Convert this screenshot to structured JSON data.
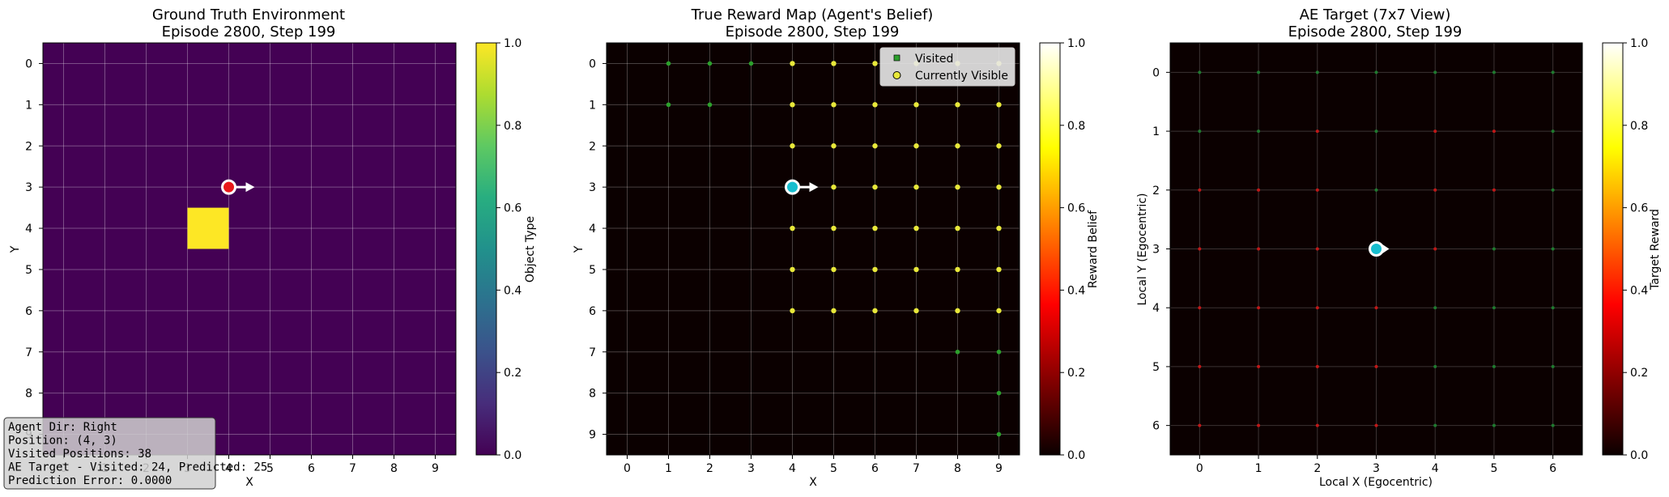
{
  "chart_data": [
    {
      "type": "heatmap",
      "title_line1": "Ground Truth Environment",
      "title_line2": "Episode 2800, Step 199",
      "xlabel": "X",
      "ylabel": "Y",
      "xticks": [
        0,
        1,
        2,
        3,
        4,
        5,
        6,
        7,
        8,
        9
      ],
      "yticks": [
        0,
        1,
        2,
        3,
        4,
        5,
        6,
        7,
        8,
        9
      ],
      "grid_size": 10,
      "background_value": 0.0,
      "objects": [
        {
          "x": 3.5,
          "y": 4,
          "value": 1.0
        }
      ],
      "agent": {
        "x": 4,
        "y": 3,
        "dir": "right"
      },
      "colorbar": {
        "label": "Object Type",
        "colormap": "viridis",
        "ticks": [
          "0.0",
          "0.2",
          "0.4",
          "0.6",
          "0.8",
          "1.0"
        ]
      },
      "info_box": [
        "Agent Dir: Right",
        "Position: (4, 3)",
        "Visited Positions: 38",
        "AE Target - Visited: 24, Predicted: 25",
        "Prediction Error: 0.0000"
      ]
    },
    {
      "type": "scatter",
      "title_line1": "True Reward Map (Agent's Belief)",
      "title_line2": "Episode 2800, Step 199",
      "xlabel": "X",
      "ylabel": "Y",
      "xticks": [
        0,
        1,
        2,
        3,
        4,
        5,
        6,
        7,
        8,
        9
      ],
      "yticks": [
        0,
        1,
        2,
        3,
        4,
        5,
        6,
        7,
        8,
        9
      ],
      "grid_size": 10,
      "visited": [
        [
          1,
          0
        ],
        [
          2,
          0
        ],
        [
          3,
          0
        ],
        [
          1,
          1
        ],
        [
          2,
          1
        ],
        [
          8,
          7
        ],
        [
          9,
          7
        ],
        [
          9,
          8
        ],
        [
          9,
          9
        ]
      ],
      "visible": [
        [
          4,
          0
        ],
        [
          5,
          0
        ],
        [
          6,
          0
        ],
        [
          7,
          0
        ],
        [
          8,
          0
        ],
        [
          9,
          0
        ],
        [
          4,
          1
        ],
        [
          5,
          1
        ],
        [
          6,
          1
        ],
        [
          7,
          1
        ],
        [
          8,
          1
        ],
        [
          9,
          1
        ],
        [
          4,
          2
        ],
        [
          5,
          2
        ],
        [
          6,
          2
        ],
        [
          7,
          2
        ],
        [
          8,
          2
        ],
        [
          9,
          2
        ],
        [
          5,
          3
        ],
        [
          6,
          3
        ],
        [
          7,
          3
        ],
        [
          8,
          3
        ],
        [
          9,
          3
        ],
        [
          4,
          4
        ],
        [
          5,
          4
        ],
        [
          6,
          4
        ],
        [
          7,
          4
        ],
        [
          8,
          4
        ],
        [
          9,
          4
        ],
        [
          4,
          5
        ],
        [
          5,
          5
        ],
        [
          6,
          5
        ],
        [
          7,
          5
        ],
        [
          8,
          5
        ],
        [
          9,
          5
        ],
        [
          4,
          6
        ],
        [
          5,
          6
        ],
        [
          6,
          6
        ],
        [
          7,
          6
        ],
        [
          8,
          6
        ],
        [
          9,
          6
        ]
      ],
      "agent": {
        "x": 4,
        "y": 3,
        "dir": "right"
      },
      "legend": {
        "placement": "top-right",
        "visited_label": "Visited",
        "visible_label": "Currently Visible"
      },
      "colorbar": {
        "label": "Reward Belief",
        "colormap": "hot",
        "ticks": [
          "0.0",
          "0.2",
          "0.4",
          "0.6",
          "0.8",
          "1.0"
        ]
      }
    },
    {
      "type": "scatter",
      "title_line1": "AE Target (7x7 View)",
      "title_line2": "Episode 2800, Step 199",
      "xlabel": "Local X (Egocentric)",
      "ylabel": "Local Y (Egocentric)",
      "xticks": [
        0,
        1,
        2,
        3,
        4,
        5,
        6
      ],
      "yticks": [
        0,
        1,
        2,
        3,
        4,
        5,
        6
      ],
      "grid_size": 7,
      "green_cells": [
        [
          0,
          0
        ],
        [
          1,
          0
        ],
        [
          2,
          0
        ],
        [
          3,
          0
        ],
        [
          4,
          0
        ],
        [
          5,
          0
        ],
        [
          6,
          0
        ],
        [
          0,
          1
        ],
        [
          1,
          1
        ],
        [
          3,
          1
        ],
        [
          6,
          1
        ],
        [
          3,
          2
        ],
        [
          6,
          2
        ],
        [
          5,
          3
        ],
        [
          6,
          3
        ],
        [
          4,
          4
        ],
        [
          5,
          4
        ],
        [
          6,
          4
        ],
        [
          4,
          5
        ],
        [
          5,
          5
        ],
        [
          6,
          5
        ],
        [
          4,
          6
        ],
        [
          5,
          6
        ],
        [
          6,
          6
        ]
      ],
      "red_cells": [
        [
          2,
          1
        ],
        [
          4,
          1
        ],
        [
          5,
          1
        ],
        [
          0,
          2
        ],
        [
          1,
          2
        ],
        [
          2,
          2
        ],
        [
          4,
          2
        ],
        [
          5,
          2
        ],
        [
          0,
          3
        ],
        [
          1,
          3
        ],
        [
          2,
          3
        ],
        [
          4,
          3
        ],
        [
          0,
          4
        ],
        [
          1,
          4
        ],
        [
          2,
          4
        ],
        [
          3,
          4
        ],
        [
          0,
          5
        ],
        [
          1,
          5
        ],
        [
          2,
          5
        ],
        [
          3,
          5
        ],
        [
          0,
          6
        ],
        [
          1,
          6
        ],
        [
          2,
          6
        ],
        [
          3,
          6
        ]
      ],
      "agent": {
        "x": 3,
        "y": 3,
        "dir": "right"
      },
      "colorbar": {
        "label": "Target Reward",
        "colormap": "hot",
        "ticks": [
          "0.0",
          "0.2",
          "0.4",
          "0.6",
          "0.8",
          "1.0"
        ]
      }
    }
  ],
  "colors": {
    "viridis_dark": "#440154",
    "viridis_yellow": "#fde725",
    "hot_black": "#0b0000",
    "agent_red": "#e8191b",
    "agent_cyan": "#17becf",
    "visited_green": "#2ca02c",
    "visible_yellow": "#e8e83a",
    "cell_green": "#1f7a2f",
    "cell_red": "#c01818"
  }
}
